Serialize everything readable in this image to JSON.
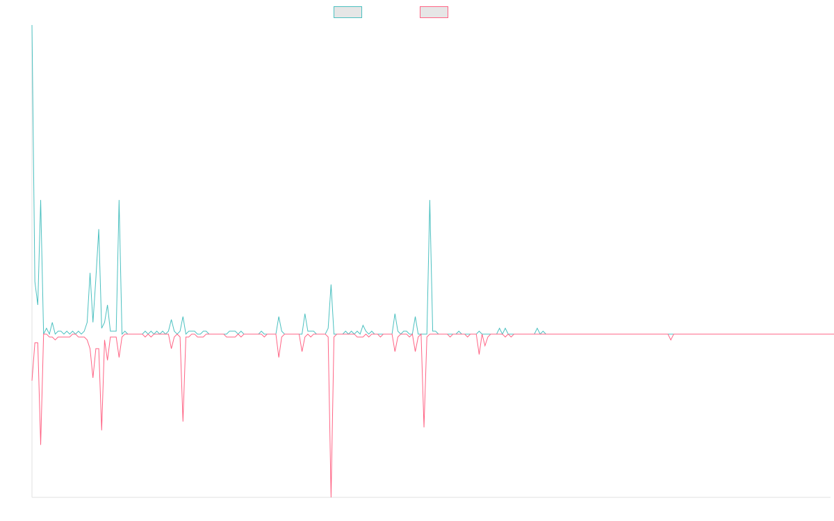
{
  "chart_data": {
    "type": "line",
    "x_start": 0,
    "x_step": 1,
    "xlim": [
      0,
      275
    ],
    "ylim": [
      -56,
      106
    ],
    "grid": false,
    "legend": {
      "position": "top-center"
    },
    "series": [
      {
        "color": "#4bc0c0",
        "fill": "#e6e6e6",
        "values": [
          106,
          18,
          10,
          46,
          0,
          2,
          0,
          4,
          0,
          1,
          1,
          0,
          1,
          0,
          1,
          0,
          1,
          0,
          1,
          4,
          21,
          4,
          19,
          36,
          2,
          4,
          10,
          1,
          1,
          1,
          46,
          0,
          1,
          0,
          0,
          0,
          0,
          0,
          0,
          1,
          0,
          1,
          0,
          1,
          0,
          1,
          0,
          1,
          5,
          1,
          0,
          1,
          6,
          0,
          1,
          1,
          1,
          0,
          0,
          1,
          1,
          0,
          0,
          0,
          0,
          0,
          0,
          0,
          1,
          1,
          1,
          0,
          1,
          0,
          0,
          0,
          0,
          0,
          0,
          1,
          0,
          0,
          0,
          0,
          0,
          6,
          1,
          0,
          0,
          0,
          0,
          0,
          0,
          0,
          7,
          1,
          1,
          1,
          0,
          0,
          0,
          0,
          2,
          17,
          0,
          0,
          0,
          0,
          1,
          0,
          1,
          0,
          1,
          0,
          3,
          1,
          0,
          1,
          0,
          0,
          0,
          0,
          0,
          0,
          0,
          7,
          1,
          0,
          1,
          1,
          0,
          0,
          6,
          0,
          0,
          0,
          0,
          46,
          1,
          1,
          0,
          0,
          0,
          0,
          0,
          0,
          0,
          1,
          0,
          0,
          0,
          0,
          0,
          0,
          1,
          0,
          0,
          0,
          0,
          0,
          0,
          2,
          0,
          2,
          0,
          0,
          0,
          0,
          0,
          0,
          0,
          0,
          0,
          0,
          2,
          0,
          1,
          0,
          0,
          0,
          0,
          0,
          0,
          0,
          0,
          0,
          0,
          0,
          0,
          0,
          0,
          0,
          0,
          0,
          0,
          0,
          0,
          0,
          0,
          0,
          0,
          0,
          0,
          0,
          0,
          0,
          0,
          0,
          0,
          0,
          0,
          0,
          0,
          0,
          0,
          0,
          0,
          0,
          0,
          0,
          0,
          0,
          0,
          0,
          0,
          0,
          0,
          0,
          0,
          0,
          0,
          0,
          0,
          0,
          0,
          0,
          0,
          0,
          0,
          0,
          0,
          0,
          0,
          0,
          0,
          0,
          0,
          0,
          0,
          0,
          0,
          0,
          0,
          0,
          0,
          0,
          0,
          0,
          0,
          0,
          0,
          0,
          0,
          0,
          0,
          0,
          0,
          0,
          0,
          0,
          0,
          0,
          0,
          0,
          0,
          0,
          0,
          0,
          0,
          0,
          0,
          0,
          0
        ]
      },
      {
        "color": "#ff6384",
        "fill": "#e6e6e6",
        "values": [
          -16,
          -3,
          -3,
          -38,
          0,
          0,
          -1,
          -1,
          -2,
          -1,
          -1,
          -1,
          -1,
          -1,
          0,
          0,
          -1,
          -1,
          -1,
          -2,
          -5,
          -15,
          -5,
          -5,
          -33,
          -2,
          -9,
          -1,
          -1,
          -1,
          -8,
          -1,
          0,
          0,
          0,
          0,
          0,
          0,
          0,
          -1,
          0,
          -1,
          0,
          0,
          0,
          0,
          0,
          0,
          -5,
          -1,
          0,
          -1,
          -30,
          -1,
          -1,
          0,
          0,
          -1,
          -1,
          -1,
          0,
          0,
          0,
          0,
          0,
          0,
          0,
          -1,
          -1,
          -1,
          -1,
          0,
          -1,
          0,
          0,
          0,
          0,
          0,
          0,
          0,
          -1,
          0,
          0,
          0,
          0,
          -8,
          -1,
          0,
          0,
          0,
          0,
          0,
          0,
          -6,
          -1,
          0,
          -1,
          0,
          0,
          0,
          0,
          0,
          -1,
          -56,
          -1,
          0,
          0,
          0,
          0,
          0,
          0,
          0,
          -1,
          -1,
          -1,
          0,
          -1,
          0,
          0,
          0,
          -1,
          0,
          0,
          0,
          0,
          -6,
          -1,
          0,
          0,
          0,
          -1,
          0,
          -6,
          -1,
          0,
          -32,
          -1,
          0,
          0,
          0,
          0,
          0,
          0,
          0,
          -1,
          0,
          0,
          0,
          0,
          0,
          -1,
          0,
          0,
          0,
          -7,
          0,
          -4,
          -1,
          0,
          0,
          0,
          0,
          0,
          -1,
          0,
          -1,
          0,
          0,
          0,
          0,
          0,
          0,
          0,
          0,
          0,
          0,
          0,
          0,
          0,
          0,
          0,
          0,
          0,
          0,
          0,
          0,
          0,
          0,
          0,
          0,
          0,
          0,
          0,
          0,
          0,
          0,
          0,
          0,
          0,
          0,
          0,
          0,
          0,
          0,
          0,
          0,
          0,
          0,
          0,
          0,
          0,
          0,
          0,
          0,
          0,
          0,
          0,
          0,
          0,
          0,
          -2,
          0,
          0,
          0,
          0,
          0,
          0,
          0,
          0,
          0,
          0,
          0,
          0,
          0,
          0,
          0,
          0,
          0,
          0,
          0,
          0,
          0,
          0,
          0,
          0,
          0,
          0,
          0,
          0,
          0,
          0,
          0,
          0,
          0,
          0,
          0,
          0,
          0,
          0,
          0,
          0,
          0,
          0,
          0,
          0,
          0,
          0,
          0,
          0,
          0,
          0,
          0,
          0,
          0,
          0,
          0,
          0,
          0,
          0,
          0,
          0,
          0,
          0,
          0,
          0,
          0,
          0,
          0,
          0,
          0,
          0,
          0,
          0,
          0,
          0,
          0
        ]
      }
    ]
  }
}
